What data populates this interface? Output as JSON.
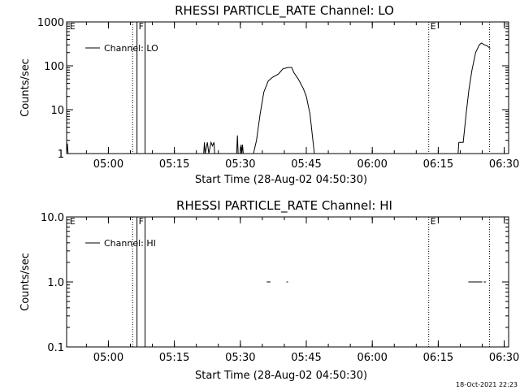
{
  "timestamp": "18-Oct-2021 22:23",
  "chart_data": [
    {
      "type": "line",
      "title": "RHESSI PARTICLE_RATE Channel: LO",
      "xlabel": "Start Time (28-Aug-02 04:50:30)",
      "ylabel": "Counts/sec",
      "yscale": "log",
      "xlim": [
        "04:50:30",
        "06:31:00"
      ],
      "ylim": [
        1,
        1000
      ],
      "x_ticks": [
        "05:00",
        "05:15",
        "05:30",
        "05:45",
        "06:00",
        "06:15",
        "06:30"
      ],
      "y_ticks": [
        "1",
        "10",
        "100",
        "1000"
      ],
      "legend": {
        "position": "top-left",
        "entries": [
          "Channel: LO"
        ]
      },
      "grid": false,
      "markers": [
        {
          "label": "E",
          "time": "04:50:50",
          "style": "none"
        },
        {
          "label": "",
          "time": "05:05:30",
          "style": "dotted"
        },
        {
          "label": "F",
          "time": "05:06:30",
          "style": "solid"
        },
        {
          "label": "",
          "time": "05:08:20",
          "style": "solid"
        },
        {
          "label": "E",
          "time": "06:12:50",
          "style": "dotted"
        },
        {
          "label": "",
          "time": "06:26:40",
          "style": "dotted"
        }
      ],
      "series": [
        {
          "name": "Channel: LO",
          "segments": [
            [
              [
                "04:50:30",
                1
              ],
              [
                "04:50:40",
                1.7
              ],
              [
                "04:50:50",
                1
              ]
            ],
            [
              [
                "05:21:40",
                1
              ],
              [
                "05:21:50",
                1.8
              ],
              [
                "05:22:00",
                1
              ],
              [
                "05:22:30",
                1.8
              ],
              [
                "05:22:50",
                1
              ],
              [
                "05:23:20",
                1.8
              ],
              [
                "05:23:40",
                1.5
              ],
              [
                "05:24:00",
                1.8
              ],
              [
                "05:24:10",
                1
              ]
            ],
            [
              [
                "05:29:10",
                1
              ],
              [
                "05:29:20",
                2.6
              ],
              [
                "05:29:30",
                1
              ]
            ],
            [
              [
                "05:30:00",
                1
              ],
              [
                "05:30:10",
                1.6
              ],
              [
                "05:30:20",
                1
              ],
              [
                "05:30:30",
                1.6
              ],
              [
                "05:30:40",
                1
              ]
            ],
            [
              [
                "05:33:00",
                1
              ],
              [
                "05:33:40",
                2
              ],
              [
                "05:34:30",
                8
              ],
              [
                "05:35:20",
                25
              ],
              [
                "05:36:20",
                45
              ],
              [
                "05:37:20",
                55
              ],
              [
                "05:38:40",
                65
              ],
              [
                "05:39:40",
                85
              ],
              [
                "05:40:50",
                92
              ],
              [
                "05:41:40",
                92
              ],
              [
                "05:42:10",
                70
              ],
              [
                "05:43:10",
                50
              ],
              [
                "05:44:20",
                30
              ],
              [
                "05:45:00",
                20
              ],
              [
                "05:45:50",
                8
              ],
              [
                "05:46:50",
                1
              ]
            ],
            [
              [
                "06:19:30",
                1
              ],
              [
                "06:19:40",
                1.8
              ],
              [
                "06:20:40",
                1.8
              ],
              [
                "06:21:20",
                8
              ],
              [
                "06:22:00",
                30
              ],
              [
                "06:22:40",
                80
              ],
              [
                "06:23:30",
                200
              ],
              [
                "06:24:20",
                300
              ],
              [
                "06:24:50",
                330
              ],
              [
                "06:25:30",
                300
              ],
              [
                "06:26:00",
                290
              ],
              [
                "06:26:50",
                250
              ]
            ]
          ]
        }
      ]
    },
    {
      "type": "line",
      "title": "RHESSI PARTICLE_RATE Channel: HI",
      "xlabel": "Start Time (28-Aug-02 04:50:30)",
      "ylabel": "Counts/sec",
      "yscale": "log",
      "xlim": [
        "04:50:30",
        "06:31:00"
      ],
      "ylim": [
        0.1,
        10
      ],
      "x_ticks": [
        "05:00",
        "05:15",
        "05:30",
        "05:45",
        "06:00",
        "06:15",
        "06:30"
      ],
      "y_ticks": [
        "0.1",
        "1.0",
        "10.0"
      ],
      "legend": {
        "position": "top-left",
        "entries": [
          "Channel: HI"
        ]
      },
      "grid": false,
      "markers": [
        {
          "label": "E",
          "time": "04:50:50",
          "style": "none"
        },
        {
          "label": "",
          "time": "05:05:30",
          "style": "dotted"
        },
        {
          "label": "F",
          "time": "05:06:30",
          "style": "solid"
        },
        {
          "label": "",
          "time": "05:08:20",
          "style": "solid"
        },
        {
          "label": "E",
          "time": "06:12:50",
          "style": "dotted"
        },
        {
          "label": "",
          "time": "06:26:40",
          "style": "dotted"
        }
      ],
      "series": [
        {
          "name": "Channel: HI",
          "segments": [
            [
              [
                "05:36:00",
                1
              ],
              [
                "05:36:50",
                1
              ]
            ],
            [
              [
                "05:40:30",
                1
              ],
              [
                "05:40:50",
                1
              ]
            ],
            [
              [
                "06:21:50",
                1
              ],
              [
                "06:25:00",
                1
              ]
            ],
            [
              [
                "06:25:20",
                1
              ],
              [
                "06:25:50",
                1
              ]
            ]
          ]
        }
      ]
    }
  ]
}
